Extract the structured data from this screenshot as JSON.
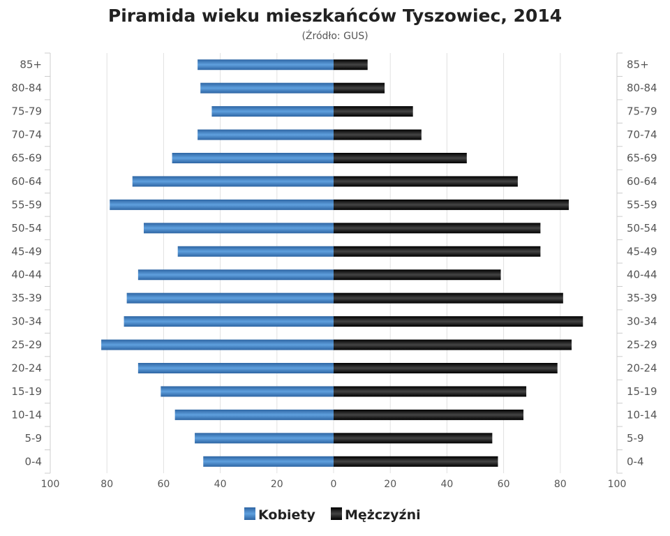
{
  "chart_data": {
    "type": "bar",
    "orientation": "horizontal-pyramid",
    "title": "Piramida wieku mieszkańców Tyszowiec, 2014",
    "subtitle": "(Źródło: GUS)",
    "categories": [
      "85+",
      "80-84",
      "75-79",
      "70-74",
      "65-69",
      "60-64",
      "55-59",
      "50-54",
      "45-49",
      "40-44",
      "35-39",
      "30-34",
      "25-29",
      "20-24",
      "15-19",
      "10-14",
      "5-9",
      "0-4"
    ],
    "series": [
      {
        "name": "Kobiety",
        "color": "#3f7fc0",
        "values": [
          48,
          47,
          43,
          48,
          57,
          71,
          79,
          67,
          55,
          69,
          73,
          74,
          82,
          69,
          61,
          56,
          49,
          46
        ]
      },
      {
        "name": "Mężczyźni",
        "color": "#1a1a1a",
        "values": [
          12,
          18,
          28,
          31,
          47,
          65,
          83,
          73,
          73,
          59,
          81,
          88,
          84,
          79,
          68,
          67,
          56,
          58
        ]
      }
    ],
    "xlim": [
      -100,
      100
    ],
    "xticks": [
      "100",
      "80",
      "60",
      "40",
      "20",
      "0",
      "20",
      "40",
      "60",
      "80",
      "100"
    ],
    "grid": true,
    "legend_position": "bottom-center"
  }
}
